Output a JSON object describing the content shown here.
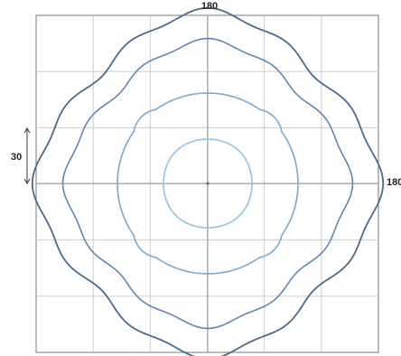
{
  "labels": {
    "top": "180",
    "right": "180",
    "scale_value": "30"
  },
  "colors": {
    "frame": "#777777",
    "grid": "#cccccc",
    "axis": "#999999",
    "scale_bar": "#333333"
  },
  "chart_data": {
    "type": "line",
    "grid": true,
    "grid_divisions": 6,
    "axis_extent": 180,
    "scale_bar": 30,
    "series": [
      {
        "color": "#4a6b8f",
        "radius": 170,
        "squareness": 0.12,
        "wave": 0.02,
        "wave_lobes": 12,
        "stroke_width": 1.8
      },
      {
        "color": "#5d87b8",
        "radius": 142,
        "squareness": 0.11,
        "wave": 0.018,
        "wave_lobes": 12,
        "stroke_width": 1.6
      },
      {
        "color": "#78aad6",
        "radius": 100,
        "squareness": 0.0,
        "notch": 0.08,
        "stroke_width": 1.6
      },
      {
        "color": "#8ec3ea",
        "radius": 50,
        "squareness": -0.02,
        "stroke_width": 1.6
      }
    ]
  }
}
